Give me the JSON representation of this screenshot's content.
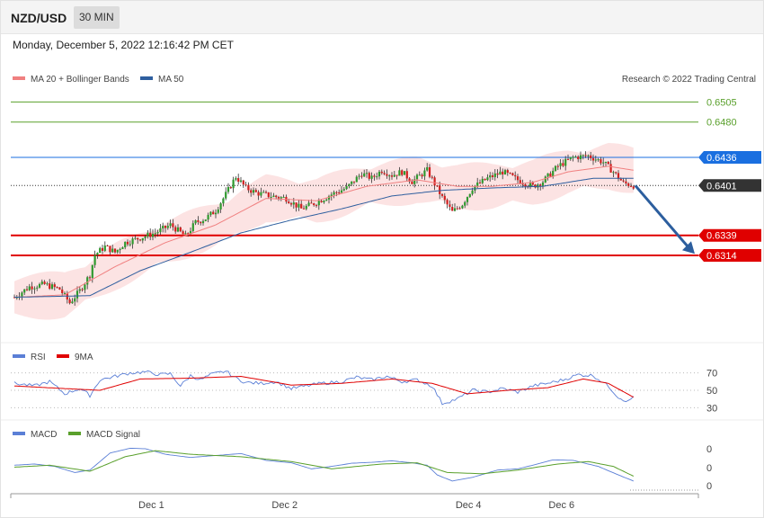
{
  "header": {
    "pair": "NZD/USD",
    "timeframe": "30 MIN"
  },
  "timestamp": "Monday, December 5, 2022 12:16:42 PM CET",
  "legend": {
    "ma20_label": "MA 20 + Bollinger Bands",
    "ma50_label": "MA 50",
    "ma20_color": "#f08080",
    "ma50_color": "#2f5f9f",
    "copyright": "Research © 2022 Trading Central"
  },
  "chart_data": [
    {
      "type": "candlestick",
      "name": "price",
      "ylim": [
        0.621,
        0.653
      ],
      "levels": [
        {
          "value": 0.6505,
          "label": "0.6505",
          "color": "#5aa02c",
          "kind": "resistance"
        },
        {
          "value": 0.648,
          "label": "0.6480",
          "color": "#5aa02c",
          "kind": "resistance"
        },
        {
          "value": 0.6436,
          "label": "0.6436",
          "color": "#1a6fe0",
          "kind": "pivot"
        },
        {
          "value": 0.6401,
          "label": "0.6401",
          "color": "#333333",
          "kind": "last"
        },
        {
          "value": 0.6339,
          "label": "0.6339",
          "color": "#e00000",
          "kind": "target"
        },
        {
          "value": 0.6314,
          "label": "0.6314",
          "color": "#e00000",
          "kind": "target"
        }
      ],
      "close_path": [
        [
          0,
          0.6262
        ],
        [
          6,
          0.6275
        ],
        [
          12,
          0.6278
        ],
        [
          18,
          0.6272
        ],
        [
          22,
          0.6255
        ],
        [
          26,
          0.627
        ],
        [
          30,
          0.629
        ],
        [
          32,
          0.6315
        ],
        [
          36,
          0.6325
        ],
        [
          40,
          0.6318
        ],
        [
          44,
          0.633
        ],
        [
          50,
          0.6336
        ],
        [
          56,
          0.6342
        ],
        [
          62,
          0.6352
        ],
        [
          68,
          0.6338
        ],
        [
          72,
          0.6355
        ],
        [
          76,
          0.636
        ],
        [
          80,
          0.637
        ],
        [
          84,
          0.639
        ],
        [
          88,
          0.6412
        ],
        [
          92,
          0.6398
        ],
        [
          96,
          0.6392
        ],
        [
          102,
          0.6388
        ],
        [
          108,
          0.6385
        ],
        [
          114,
          0.6372
        ],
        [
          120,
          0.638
        ],
        [
          126,
          0.639
        ],
        [
          132,
          0.6398
        ],
        [
          138,
          0.6416
        ],
        [
          142,
          0.641
        ],
        [
          146,
          0.642
        ],
        [
          150,
          0.6414
        ],
        [
          154,
          0.6418
        ],
        [
          158,
          0.6406
        ],
        [
          164,
          0.642
        ],
        [
          170,
          0.6386
        ],
        [
          174,
          0.6368
        ],
        [
          178,
          0.6378
        ],
        [
          182,
          0.6398
        ],
        [
          188,
          0.641
        ],
        [
          194,
          0.6418
        ],
        [
          200,
          0.6408
        ],
        [
          206,
          0.64
        ],
        [
          210,
          0.6406
        ],
        [
          216,
          0.6425
        ],
        [
          222,
          0.6436
        ],
        [
          228,
          0.6438
        ],
        [
          234,
          0.643
        ],
        [
          238,
          0.6418
        ],
        [
          242,
          0.6404
        ],
        [
          246,
          0.6401
        ]
      ],
      "ma20_path": [
        [
          0,
          0.6262
        ],
        [
          20,
          0.6265
        ],
        [
          40,
          0.63
        ],
        [
          60,
          0.633
        ],
        [
          80,
          0.6352
        ],
        [
          100,
          0.6385
        ],
        [
          120,
          0.6382
        ],
        [
          140,
          0.64
        ],
        [
          160,
          0.6408
        ],
        [
          176,
          0.64
        ],
        [
          190,
          0.64
        ],
        [
          206,
          0.6405
        ],
        [
          220,
          0.6418
        ],
        [
          236,
          0.6425
        ],
        [
          246,
          0.642
        ]
      ],
      "ma50_path": [
        [
          0,
          0.6262
        ],
        [
          30,
          0.6264
        ],
        [
          50,
          0.6295
        ],
        [
          70,
          0.6318
        ],
        [
          90,
          0.6342
        ],
        [
          110,
          0.6358
        ],
        [
          130,
          0.6372
        ],
        [
          150,
          0.6388
        ],
        [
          170,
          0.6395
        ],
        [
          190,
          0.6398
        ],
        [
          210,
          0.64
        ],
        [
          230,
          0.641
        ],
        [
          246,
          0.641
        ]
      ],
      "bollinger_halfwidth": 0.0025
    },
    {
      "type": "line",
      "name": "rsi",
      "legend": [
        "RSI",
        "9MA"
      ],
      "colors": [
        "#5b7fd6",
        "#e00000"
      ],
      "yticks": [
        "70",
        "50",
        "30"
      ],
      "ylim": [
        20,
        80
      ],
      "rsi": [
        [
          0,
          58
        ],
        [
          8,
          55
        ],
        [
          14,
          60
        ],
        [
          20,
          46
        ],
        [
          26,
          52
        ],
        [
          30,
          44
        ],
        [
          34,
          62
        ],
        [
          40,
          66
        ],
        [
          46,
          70
        ],
        [
          52,
          71
        ],
        [
          58,
          68
        ],
        [
          62,
          69
        ],
        [
          66,
          55
        ],
        [
          70,
          67
        ],
        [
          74,
          62
        ],
        [
          78,
          68
        ],
        [
          84,
          72
        ],
        [
          88,
          64
        ],
        [
          92,
          59
        ],
        [
          98,
          58
        ],
        [
          104,
          60
        ],
        [
          110,
          52
        ],
        [
          116,
          55
        ],
        [
          122,
          58
        ],
        [
          130,
          60
        ],
        [
          136,
          65
        ],
        [
          142,
          62
        ],
        [
          148,
          66
        ],
        [
          154,
          60
        ],
        [
          160,
          62
        ],
        [
          166,
          55
        ],
        [
          170,
          35
        ],
        [
          176,
          40
        ],
        [
          182,
          50
        ],
        [
          188,
          48
        ],
        [
          194,
          52
        ],
        [
          200,
          48
        ],
        [
          206,
          55
        ],
        [
          212,
          58
        ],
        [
          218,
          62
        ],
        [
          224,
          68
        ],
        [
          230,
          67
        ],
        [
          236,
          55
        ],
        [
          240,
          42
        ],
        [
          244,
          37
        ],
        [
          246,
          43
        ]
      ],
      "ma": [
        [
          0,
          55
        ],
        [
          20,
          52
        ],
        [
          34,
          50
        ],
        [
          50,
          63
        ],
        [
          70,
          64
        ],
        [
          90,
          66
        ],
        [
          110,
          56
        ],
        [
          130,
          58
        ],
        [
          150,
          63
        ],
        [
          166,
          58
        ],
        [
          180,
          46
        ],
        [
          196,
          50
        ],
        [
          212,
          53
        ],
        [
          226,
          63
        ],
        [
          236,
          58
        ],
        [
          246,
          42
        ]
      ]
    },
    {
      "type": "line",
      "name": "macd",
      "legend": [
        "MACD",
        "MACD Signal"
      ],
      "colors": [
        "#5b7fd6",
        "#5aa02c"
      ],
      "yticks": [
        "0",
        "0",
        "0"
      ],
      "ylim": [
        -1,
        1
      ],
      "macd": [
        [
          0,
          0.1
        ],
        [
          8,
          0.15
        ],
        [
          16,
          0.05
        ],
        [
          24,
          -0.2
        ],
        [
          30,
          -0.1
        ],
        [
          38,
          0.6
        ],
        [
          46,
          0.8
        ],
        [
          52,
          0.78
        ],
        [
          60,
          0.55
        ],
        [
          70,
          0.42
        ],
        [
          80,
          0.5
        ],
        [
          90,
          0.58
        ],
        [
          100,
          0.3
        ],
        [
          110,
          0.2
        ],
        [
          118,
          -0.05
        ],
        [
          126,
          0.05
        ],
        [
          134,
          0.18
        ],
        [
          142,
          0.22
        ],
        [
          150,
          0.28
        ],
        [
          158,
          0.2
        ],
        [
          164,
          0.1
        ],
        [
          168,
          -0.3
        ],
        [
          174,
          -0.55
        ],
        [
          182,
          -0.4
        ],
        [
          192,
          -0.1
        ],
        [
          200,
          -0.05
        ],
        [
          206,
          0.1
        ],
        [
          214,
          0.32
        ],
        [
          222,
          0.3
        ],
        [
          232,
          0.05
        ],
        [
          240,
          -0.3
        ],
        [
          246,
          -0.55
        ]
      ],
      "signal": [
        [
          0,
          0.02
        ],
        [
          14,
          0.1
        ],
        [
          30,
          -0.15
        ],
        [
          44,
          0.45
        ],
        [
          56,
          0.7
        ],
        [
          70,
          0.55
        ],
        [
          90,
          0.45
        ],
        [
          110,
          0.25
        ],
        [
          126,
          -0.05
        ],
        [
          146,
          0.15
        ],
        [
          160,
          0.2
        ],
        [
          172,
          -0.2
        ],
        [
          186,
          -0.25
        ],
        [
          200,
          -0.1
        ],
        [
          216,
          0.15
        ],
        [
          228,
          0.25
        ],
        [
          238,
          0.05
        ],
        [
          246,
          -0.35
        ]
      ]
    }
  ],
  "xaxis": {
    "ticks": [
      {
        "x": 53,
        "label": "Dec 1"
      },
      {
        "x": 106,
        "label": "Dec 2"
      },
      {
        "x": 179,
        "label": "Dec 4"
      },
      {
        "x": 216,
        "label": "Dec 6"
      }
    ]
  }
}
